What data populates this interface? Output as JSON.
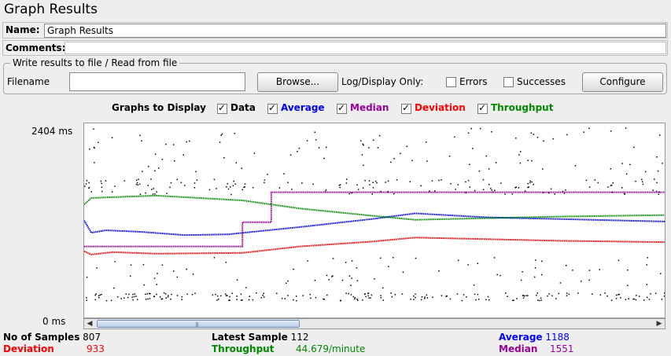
{
  "window": {
    "title": "Graph Results"
  },
  "name_row": {
    "label": "Name:",
    "value": "Graph Results"
  },
  "comments_row": {
    "label": "Comments:"
  },
  "file_group": {
    "legend": "Write results to file / Read from file",
    "filename_label": "Filename",
    "filename_value": "",
    "browse_label": "Browse...",
    "log_display_label": "Log/Display Only:",
    "errors_label": "Errors",
    "successes_label": "Successes",
    "configure_label": "Configure"
  },
  "graphs_to_display": {
    "label": "Graphs to Display",
    "options": [
      {
        "label": "Data",
        "checked": true,
        "color": "#000000"
      },
      {
        "label": "Average",
        "checked": true,
        "color": "#0000ff"
      },
      {
        "label": "Median",
        "checked": true,
        "color": "#990099"
      },
      {
        "label": "Deviation",
        "checked": true,
        "color": "#ff0000"
      },
      {
        "label": "Throughput",
        "checked": true,
        "color": "#008800"
      }
    ]
  },
  "chart_data": {
    "type": "line",
    "ymax_label": "2404 ms",
    "ymin_label": "0 ms",
    "ylim": [
      0,
      2404
    ],
    "xlim": [
      0,
      807
    ],
    "series": [
      {
        "name": "Average",
        "color": "#0000ff",
        "x": [
          0,
          10,
          30,
          80,
          140,
          200,
          300,
          400,
          460,
          560,
          660,
          807
        ],
        "y": [
          1200,
          1050,
          1080,
          1060,
          1020,
          1030,
          1120,
          1220,
          1290,
          1240,
          1220,
          1188
        ]
      },
      {
        "name": "Median",
        "color": "#990099",
        "x": [
          0,
          220,
          220,
          260,
          260,
          807
        ],
        "y": [
          880,
          880,
          1180,
          1180,
          1551,
          1551
        ]
      },
      {
        "name": "Deviation",
        "color": "#ff0000",
        "x": [
          0,
          10,
          40,
          100,
          220,
          300,
          400,
          460,
          560,
          660,
          807
        ],
        "y": [
          820,
          780,
          810,
          790,
          800,
          880,
          940,
          990,
          970,
          950,
          933
        ]
      },
      {
        "name": "Throughput",
        "color": "#008800",
        "x": [
          0,
          10,
          40,
          100,
          220,
          300,
          400,
          460,
          560,
          660,
          807
        ],
        "y": [
          1400,
          1480,
          1490,
          1510,
          1450,
          1350,
          1260,
          1210,
          1230,
          1250,
          1268
        ]
      }
    ]
  },
  "stats": {
    "no_of_samples_label": "No of Samples",
    "no_of_samples_value": "807",
    "latest_sample_label": "Latest Sample",
    "latest_sample_value": "112",
    "average_label": "Average",
    "average_value": "1188",
    "deviation_label": "Deviation",
    "deviation_value": "933",
    "throughput_label": "Throughput",
    "throughput_value": "44.679/minute",
    "median_label": "Median",
    "median_value": "1551"
  }
}
